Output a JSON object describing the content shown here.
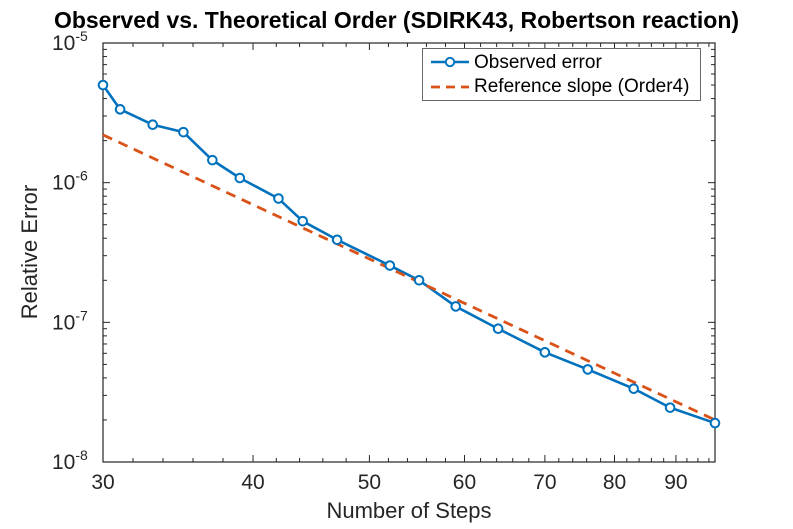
{
  "figure": {
    "background": "#ffffff"
  },
  "chart_data": {
    "type": "line",
    "title": "Observed vs. Theoretical Order (SDIRK43, Robertson reaction)",
    "xlabel": "Number of Steps",
    "ylabel": "Relative Error",
    "x_scale": "log",
    "y_scale": "log",
    "xlim": [
      30,
      97
    ],
    "ylim": [
      1e-08,
      1e-05
    ],
    "xticks": [
      30,
      40,
      50,
      60,
      70,
      80,
      90
    ],
    "ytick_base": "10",
    "ytick_exponents": [
      -5,
      -6,
      -7,
      -8
    ],
    "grid": false,
    "legend_position": "top-right",
    "axis_color": "#262626",
    "series": [
      {
        "name": "Observed error",
        "color": "#0072BD",
        "line_style": "solid",
        "marker": "circle",
        "x": [
          30,
          31,
          33,
          35,
          37,
          39,
          42,
          44,
          47,
          52,
          55,
          59,
          64,
          70,
          76,
          83,
          89,
          97
        ],
        "y": [
          5e-06,
          3.35e-06,
          2.6e-06,
          2.3e-06,
          1.45e-06,
          1.08e-06,
          7.7e-07,
          5.3e-07,
          3.9e-07,
          2.55e-07,
          2e-07,
          1.3e-07,
          9e-08,
          6.1e-08,
          4.6e-08,
          3.35e-08,
          2.45e-08,
          1.9e-08
        ]
      },
      {
        "name": "Reference slope (Order4)",
        "color": "#D95319",
        "line_style": "dashed",
        "marker": "none",
        "x": [
          30,
          97
        ],
        "y": [
          2.2e-06,
          2e-08
        ]
      }
    ]
  }
}
